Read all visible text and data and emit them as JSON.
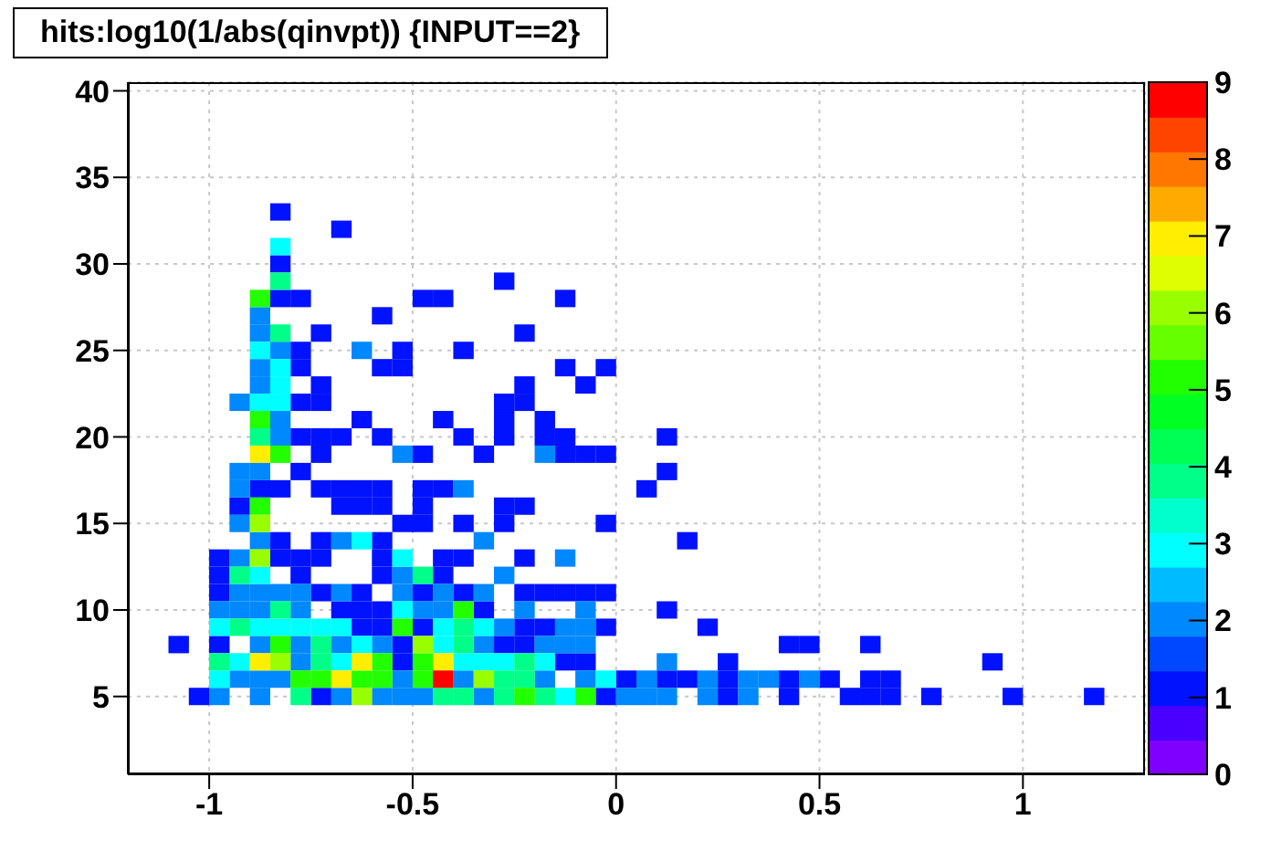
{
  "chart_data": {
    "type": "scatter",
    "title": "hits:log10(1/abs(qinvpt)) {INPUT==2}",
    "marker": "square",
    "xlim": [
      -1.2,
      1.3
    ],
    "xticks": [
      -1,
      -0.5,
      0,
      0.5,
      1
    ],
    "ylim": [
      0.5,
      40.5
    ],
    "yticks": [
      5,
      10,
      15,
      20,
      25,
      30,
      35,
      40
    ],
    "clim": [
      0,
      9
    ],
    "cticks": [
      0,
      1,
      2,
      3,
      4,
      5,
      6,
      7,
      8,
      9
    ],
    "grid": true,
    "series": [
      {
        "x": [
          -0.825,
          -0.675,
          -0.825,
          -0.275,
          -0.825,
          -0.775,
          -0.475,
          -0.425,
          -0.125,
          -0.575,
          -0.725,
          -0.225,
          -0.775,
          -0.525,
          -0.375,
          -0.775,
          -0.575,
          -0.525,
          -0.125,
          -0.025,
          -0.725,
          -0.225,
          -0.075,
          -0.775,
          -0.725,
          -0.275,
          -0.225,
          -0.625,
          -0.425,
          -0.275,
          -0.175,
          -0.775,
          -0.725,
          -0.675,
          -0.575,
          -0.375,
          -0.275,
          -0.175,
          -0.125,
          0.125,
          -0.725,
          -0.475,
          -0.325,
          -0.125,
          -0.075,
          -0.025,
          -0.775,
          0.125,
          -0.875,
          -0.825,
          -0.725,
          -0.675,
          -0.625,
          -0.575,
          -0.475,
          -0.425,
          0.075,
          -0.925,
          -0.675,
          -0.625,
          -0.575,
          -0.475,
          -0.275,
          -0.225,
          -0.525,
          -0.475,
          -0.375,
          -0.275,
          -0.025,
          -0.825,
          -0.725,
          -0.575,
          0.175,
          -0.975,
          -0.825,
          -0.775,
          -0.725,
          -0.575,
          -0.425,
          -0.375,
          -0.225,
          -0.975,
          -0.775,
          -0.575,
          -0.425,
          -0.975,
          -0.725,
          -0.625,
          -0.475,
          -0.375,
          -0.225,
          -0.175,
          -0.125,
          -0.075,
          -0.025,
          -0.675,
          -0.625,
          -0.575,
          -0.325,
          0.125,
          -0.625,
          -0.575,
          -0.475,
          -0.225,
          -0.175,
          -0.025,
          0.225,
          -1.075,
          -0.975,
          -0.525,
          -0.275,
          -0.225,
          0.425,
          0.475,
          0.625,
          -0.525,
          -0.125,
          -0.075,
          0.275,
          0.925,
          0.025,
          0.125,
          0.175,
          0.275,
          0.425,
          0.525,
          0.625,
          0.675,
          -1.025,
          -0.725,
          -0.025,
          0.275,
          0.425,
          0.575,
          0.625,
          0.675,
          0.775,
          0.975,
          1.175
        ],
        "values": [
          33,
          32,
          30,
          29,
          28,
          28,
          28,
          28,
          28,
          27,
          26,
          26,
          25,
          25,
          25,
          24,
          24,
          24,
          24,
          24,
          23,
          23,
          23,
          22,
          22,
          22,
          22,
          21,
          21,
          21,
          21,
          20,
          20,
          20,
          20,
          20,
          20,
          20,
          20,
          20,
          19,
          19,
          19,
          19,
          19,
          19,
          18,
          18,
          17,
          17,
          17,
          17,
          17,
          17,
          17,
          17,
          17,
          16,
          16,
          16,
          16,
          16,
          16,
          16,
          15,
          15,
          15,
          15,
          15,
          14,
          14,
          14,
          14,
          13,
          13,
          13,
          13,
          13,
          13,
          13,
          13,
          12,
          12,
          12,
          12,
          11,
          11,
          11,
          11,
          11,
          11,
          11,
          11,
          11,
          11,
          10,
          10,
          10,
          10,
          10,
          9,
          9,
          9,
          9,
          9,
          9,
          9,
          8,
          8,
          8,
          8,
          8,
          8,
          8,
          8,
          7,
          7,
          7,
          7,
          7,
          6,
          6,
          6,
          6,
          6,
          6,
          6,
          6,
          5,
          5,
          5,
          5,
          5,
          5,
          5,
          5,
          5,
          5,
          5
        ],
        "cvalues": [
          1,
          1,
          1,
          1,
          1,
          1,
          1,
          1,
          1,
          1,
          1,
          1,
          1,
          1,
          1,
          1,
          1,
          1,
          1,
          1,
          1,
          1,
          1,
          1,
          1,
          1,
          1,
          1,
          1,
          1,
          1,
          1,
          1,
          1,
          1,
          1,
          1,
          1,
          1,
          1,
          1,
          1,
          1,
          1,
          1,
          1,
          1,
          1,
          1,
          1,
          1,
          1,
          1,
          1,
          1,
          1,
          1,
          1,
          1,
          1,
          1,
          1,
          1,
          1,
          1,
          1,
          1,
          1,
          1,
          1,
          1,
          1,
          1,
          1,
          1,
          1,
          1,
          1,
          1,
          1,
          1,
          1,
          1,
          1,
          1,
          1,
          1,
          1,
          1,
          1,
          1,
          1,
          1,
          1,
          1,
          1,
          1,
          1,
          1,
          1,
          1,
          1,
          1,
          1,
          1,
          1,
          1,
          1,
          1,
          1,
          1,
          1,
          1,
          1,
          1,
          1,
          1,
          1,
          1,
          1,
          1,
          1,
          1,
          1,
          1,
          1,
          1,
          1,
          1,
          1,
          1,
          1,
          1,
          1,
          1,
          1,
          1,
          1,
          1
        ]
      },
      {
        "x": [
          -0.875,
          -0.875,
          -0.825,
          -0.625,
          -0.875,
          -0.875,
          -0.925,
          -0.825,
          -0.825,
          -0.525,
          -0.175,
          -0.925,
          -0.875,
          -0.925,
          -0.375,
          -0.925,
          -0.875,
          -0.675,
          -0.325,
          -0.925,
          -0.125,
          -0.525,
          -0.275,
          -0.925,
          -0.875,
          -0.825,
          -0.775,
          -0.675,
          -0.525,
          -0.425,
          -0.325,
          -0.975,
          -0.925,
          -0.875,
          -0.775,
          -0.475,
          -0.425,
          -0.225,
          -0.075,
          -0.275,
          -0.125,
          -0.075,
          -0.875,
          -0.775,
          -0.675,
          -0.575,
          -0.325,
          -0.175,
          -0.125,
          -0.075,
          -0.775,
          0.125,
          -0.925,
          -0.875,
          -0.825,
          -0.525,
          -0.375,
          -0.175,
          -0.075,
          0.075,
          0.225,
          0.325,
          0.375,
          0.475,
          -0.975,
          -0.875,
          -0.675,
          -0.575,
          -0.525,
          -0.475,
          -0.325,
          0.025,
          0.075,
          0.125,
          0.225,
          0.325
        ],
        "values": [
          27,
          26,
          25,
          25,
          24,
          23,
          22,
          21,
          20,
          19,
          19,
          18,
          18,
          17,
          17,
          15,
          14,
          14,
          14,
          13,
          13,
          12,
          12,
          11,
          11,
          11,
          11,
          11,
          11,
          11,
          11,
          10,
          10,
          10,
          10,
          10,
          10,
          10,
          10,
          9,
          9,
          9,
          8,
          8,
          8,
          8,
          8,
          8,
          8,
          8,
          7,
          7,
          6,
          6,
          6,
          6,
          6,
          6,
          6,
          6,
          6,
          6,
          6,
          6,
          5,
          5,
          5,
          5,
          5,
          5,
          5,
          5,
          5,
          5,
          5,
          5
        ],
        "cvalues": [
          2,
          2,
          2,
          2,
          2,
          2,
          2,
          2,
          2,
          2,
          2,
          2,
          2,
          2,
          2,
          2,
          2,
          2,
          2,
          2,
          2,
          2,
          2,
          2,
          2,
          2,
          2,
          2,
          2,
          2,
          2,
          2,
          2,
          2,
          2,
          2,
          2,
          2,
          2,
          2,
          2,
          2,
          2,
          2,
          2,
          2,
          2,
          2,
          2,
          2,
          2,
          2,
          2,
          2,
          2,
          2,
          2,
          2,
          2,
          2,
          2,
          2,
          2,
          2,
          2,
          2,
          2,
          2,
          2,
          2,
          2,
          2,
          2,
          2,
          2,
          2
        ]
      },
      {
        "x": [
          -0.825,
          -0.875,
          -0.825,
          -0.825,
          -0.875,
          -0.825,
          -0.625,
          -0.525,
          -0.875,
          -0.525,
          -0.975,
          -0.875,
          -0.825,
          -0.775,
          -0.725,
          -0.675,
          -0.425,
          -0.325,
          -0.625,
          -0.425,
          -0.925,
          -0.675,
          -0.375,
          -0.325,
          -0.275,
          -0.175,
          -0.975,
          -0.025,
          -0.125
        ],
        "values": [
          31,
          25,
          24,
          23,
          22,
          22,
          14,
          13,
          12,
          10,
          9,
          9,
          9,
          9,
          9,
          9,
          9,
          9,
          8,
          8,
          7,
          7,
          7,
          7,
          7,
          7,
          6,
          6,
          5
        ],
        "cvalues": [
          3,
          3,
          3,
          3,
          3,
          3,
          3,
          3,
          3,
          3,
          3,
          3,
          3,
          3,
          3,
          3,
          3,
          3,
          3,
          3,
          3,
          3,
          3,
          3,
          3,
          3,
          3,
          3,
          3
        ]
      },
      {
        "x": [
          -0.825,
          -0.825,
          -0.875,
          -0.925,
          -0.475,
          -0.825,
          -0.925,
          -0.375,
          -0.725,
          -0.375,
          -0.975,
          -0.725,
          -0.225,
          -0.275,
          -0.225,
          -0.775,
          -0.425,
          -0.375,
          -0.275,
          -0.175
        ],
        "values": [
          29,
          26,
          20,
          12,
          12,
          10,
          9,
          9,
          8,
          8,
          7,
          7,
          7,
          6,
          6,
          5,
          5,
          5,
          5,
          5
        ],
        "cvalues": [
          4,
          4,
          4,
          4,
          4,
          4,
          4,
          4,
          4,
          4,
          4,
          4,
          4,
          4,
          4,
          4,
          4,
          4,
          4,
          4
        ]
      },
      {
        "x": [
          -0.875,
          -0.875,
          -0.825,
          -0.875,
          -0.375,
          -0.525,
          -0.825,
          -0.575,
          -0.475,
          -0.775,
          -0.725,
          -0.625,
          -0.575,
          -0.475,
          -0.225,
          -0.075
        ],
        "values": [
          28,
          21,
          19,
          16,
          10,
          9,
          8,
          7,
          7,
          6,
          6,
          6,
          6,
          6,
          5,
          5
        ],
        "cvalues": [
          5,
          5,
          5,
          5,
          5,
          5,
          5,
          5,
          5,
          5,
          5,
          5,
          5,
          5,
          5,
          5
        ]
      },
      {
        "x": [
          -0.875,
          -0.875,
          -0.475,
          -0.825,
          -0.325,
          -0.625
        ],
        "values": [
          15,
          13,
          8,
          7,
          6,
          5
        ],
        "cvalues": [
          6,
          6,
          6,
          6,
          6,
          6
        ]
      },
      {
        "x": [
          -0.875,
          -0.875,
          -0.625,
          -0.425,
          -0.675
        ],
        "values": [
          19,
          7,
          7,
          7,
          6
        ],
        "cvalues": [
          7,
          7,
          7,
          7,
          7
        ]
      },
      {
        "x": [
          -0.425
        ],
        "values": [
          6
        ],
        "cvalues": [
          9
        ]
      }
    ]
  }
}
